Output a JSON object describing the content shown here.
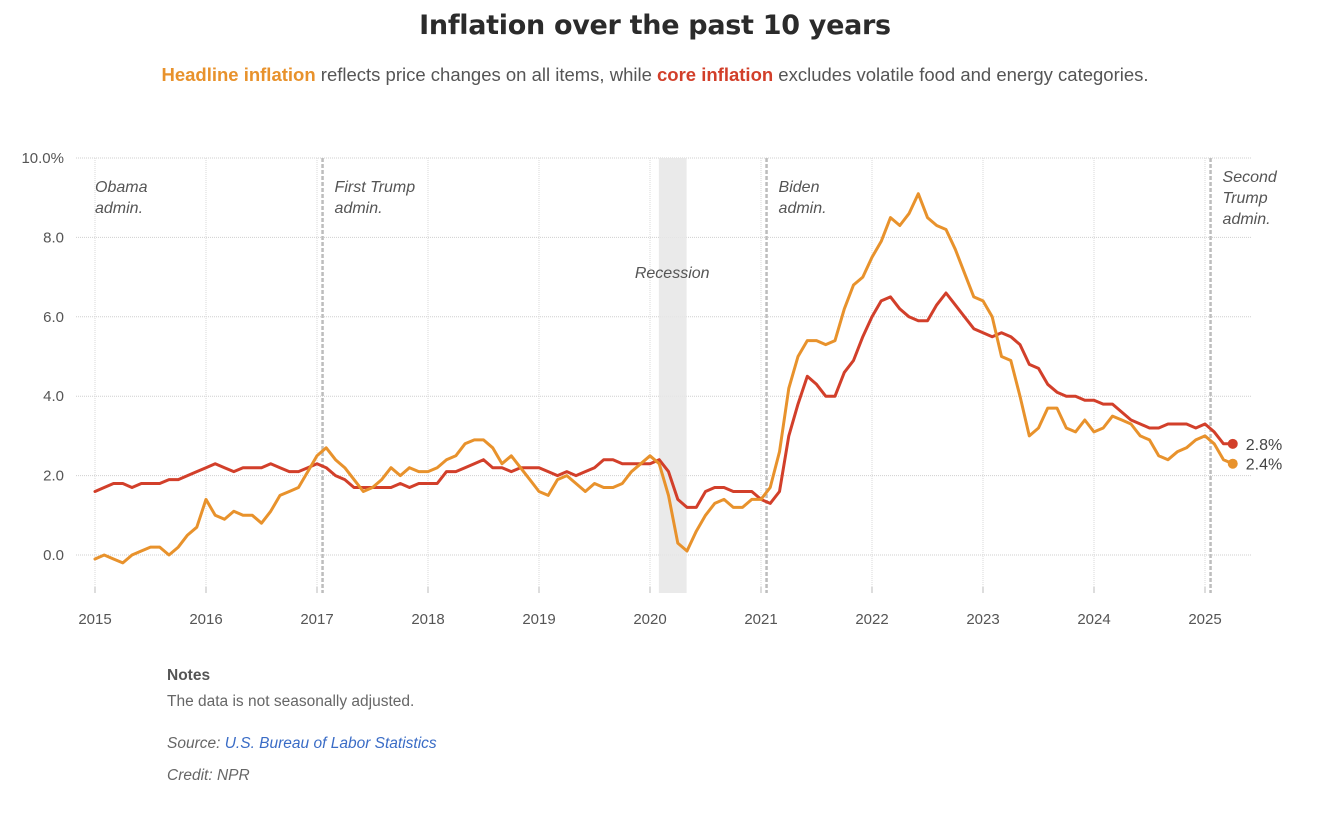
{
  "header": {
    "title": "Inflation over the past 10 years",
    "subtitle_parts": {
      "headline_term": "Headline inflation",
      "mid_text": " reflects price changes on all items, while ",
      "core_term": "core inflation",
      "end_text": " excludes volatile food and energy categories."
    }
  },
  "colors": {
    "headline": "#e8922c",
    "core": "#d23f2a",
    "link": "#3a6cc6",
    "recession": "#e6e6e6"
  },
  "notes": {
    "heading": "Notes",
    "text": "The data is not seasonally adjusted.",
    "source_label": "Source: ",
    "source_link": "U.S. Bureau of Labor Statistics",
    "credit": "Credit: NPR"
  },
  "chart_data": {
    "type": "line",
    "title": "Inflation over the past 10 years",
    "xlabel": "",
    "ylabel": "",
    "x_start": "2015-01",
    "x_end": "2025-04",
    "xlim": [
      2015.0,
      2025.4
    ],
    "ylim": [
      -1.0,
      10.0
    ],
    "y_ticks": [
      0,
      2,
      4,
      6,
      8,
      10
    ],
    "y_tick_labels": [
      "0.0",
      "2.0",
      "4.0",
      "6.0",
      "8.0",
      "10.0%"
    ],
    "x_ticks": [
      2015,
      2016,
      2017,
      2018,
      2019,
      2020,
      2021,
      2022,
      2023,
      2024,
      2025
    ],
    "x_tick_labels": [
      "2015",
      "2016",
      "2017",
      "2018",
      "2019",
      "2020",
      "2021",
      "2022",
      "2023",
      "2024",
      "2025"
    ],
    "grid": true,
    "legend": "none (inline in subtitle)",
    "series": [
      {
        "name": "Headline inflation",
        "color": "#e8922c",
        "end_label": "2.4%",
        "values": [
          -0.1,
          0.0,
          -0.1,
          -0.2,
          0.0,
          0.1,
          0.2,
          0.2,
          0.0,
          0.2,
          0.5,
          0.7,
          1.4,
          1.0,
          0.9,
          1.1,
          1.0,
          1.0,
          0.8,
          1.1,
          1.5,
          1.6,
          1.7,
          2.1,
          2.5,
          2.7,
          2.4,
          2.2,
          1.9,
          1.6,
          1.7,
          1.9,
          2.2,
          2.0,
          2.2,
          2.1,
          2.1,
          2.2,
          2.4,
          2.5,
          2.8,
          2.9,
          2.9,
          2.7,
          2.3,
          2.5,
          2.2,
          1.9,
          1.6,
          1.5,
          1.9,
          2.0,
          1.8,
          1.6,
          1.8,
          1.7,
          1.7,
          1.8,
          2.1,
          2.3,
          2.5,
          2.3,
          1.5,
          0.3,
          0.1,
          0.6,
          1.0,
          1.3,
          1.4,
          1.2,
          1.2,
          1.4,
          1.4,
          1.7,
          2.6,
          4.2,
          5.0,
          5.4,
          5.4,
          5.3,
          5.4,
          6.2,
          6.8,
          7.0,
          7.5,
          7.9,
          8.5,
          8.3,
          8.6,
          9.1,
          8.5,
          8.3,
          8.2,
          7.7,
          7.1,
          6.5,
          6.4,
          6.0,
          5.0,
          4.9,
          4.0,
          3.0,
          3.2,
          3.7,
          3.7,
          3.2,
          3.1,
          3.4,
          3.1,
          3.2,
          3.5,
          3.4,
          3.3,
          3.0,
          2.9,
          2.5,
          2.4,
          2.6,
          2.7,
          2.9,
          3.0,
          2.8,
          2.4,
          2.3
        ]
      },
      {
        "name": "Core inflation",
        "color": "#d23f2a",
        "end_label": "2.8%",
        "values": [
          1.6,
          1.7,
          1.8,
          1.8,
          1.7,
          1.8,
          1.8,
          1.8,
          1.9,
          1.9,
          2.0,
          2.1,
          2.2,
          2.3,
          2.2,
          2.1,
          2.2,
          2.2,
          2.2,
          2.3,
          2.2,
          2.1,
          2.1,
          2.2,
          2.3,
          2.2,
          2.0,
          1.9,
          1.7,
          1.7,
          1.7,
          1.7,
          1.7,
          1.8,
          1.7,
          1.8,
          1.8,
          1.8,
          2.1,
          2.1,
          2.2,
          2.3,
          2.4,
          2.2,
          2.2,
          2.1,
          2.2,
          2.2,
          2.2,
          2.1,
          2.0,
          2.1,
          2.0,
          2.1,
          2.2,
          2.4,
          2.4,
          2.3,
          2.3,
          2.3,
          2.3,
          2.4,
          2.1,
          1.4,
          1.2,
          1.2,
          1.6,
          1.7,
          1.7,
          1.6,
          1.6,
          1.6,
          1.4,
          1.3,
          1.6,
          3.0,
          3.8,
          4.5,
          4.3,
          4.0,
          4.0,
          4.6,
          4.9,
          5.5,
          6.0,
          6.4,
          6.5,
          6.2,
          6.0,
          5.9,
          5.9,
          6.3,
          6.6,
          6.3,
          6.0,
          5.7,
          5.6,
          5.5,
          5.6,
          5.5,
          5.3,
          4.8,
          4.7,
          4.3,
          4.1,
          4.0,
          4.0,
          3.9,
          3.9,
          3.8,
          3.8,
          3.6,
          3.4,
          3.3,
          3.2,
          3.2,
          3.3,
          3.3,
          3.3,
          3.2,
          3.3,
          3.1,
          2.8,
          2.8
        ]
      }
    ],
    "shaded_regions": [
      {
        "label": "Recession",
        "start": 2020.08,
        "end": 2020.33
      }
    ],
    "annotations": [
      {
        "id": "obama",
        "lines": [
          "Obama",
          "admin."
        ],
        "x": 2015.0,
        "divider": false
      },
      {
        "id": "trump1",
        "lines": [
          "First Trump",
          "admin."
        ],
        "x": 2017.05,
        "divider": true
      },
      {
        "id": "recession",
        "lines": [
          "Recession"
        ],
        "x": 2020.2,
        "divider": false
      },
      {
        "id": "biden",
        "lines": [
          "Biden",
          "admin."
        ],
        "x": 2021.05,
        "divider": true
      },
      {
        "id": "trump2",
        "lines": [
          "Second",
          "Trump",
          "admin."
        ],
        "x": 2025.05,
        "divider": true
      }
    ]
  }
}
